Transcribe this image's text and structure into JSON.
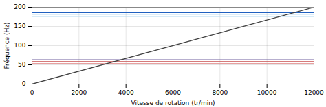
{
  "chart_data": {
    "type": "line",
    "xlabel": "Vitesse de rotation (tr/min)",
    "ylabel": "Fréquence (Hz)",
    "x": [
      0,
      12000
    ],
    "series": [
      {
        "color": "#2060c0",
        "values": [
          186.0,
          186.0
        ]
      },
      {
        "color": "#70b8e8",
        "values": [
          182.0,
          182.0
        ]
      },
      {
        "color": "#b0d8f0",
        "values": [
          176.0,
          176.0
        ]
      },
      {
        "color": "#7060a0",
        "values": [
          63.0,
          63.0
        ]
      },
      {
        "color": "#c85050",
        "values": [
          58.0,
          58.0
        ]
      },
      {
        "color": "#e8a0a0",
        "values": [
          53.5,
          53.5
        ]
      },
      {
        "color": "#404040",
        "values": [
          0,
          200
        ]
      }
    ],
    "xlim": [
      0,
      12000
    ],
    "ylim": [
      0,
      200
    ],
    "xticks": [
      0,
      2000,
      4000,
      6000,
      8000,
      10000,
      12000
    ],
    "yticks": [
      0,
      50,
      100,
      150,
      200
    ],
    "grid": true
  }
}
